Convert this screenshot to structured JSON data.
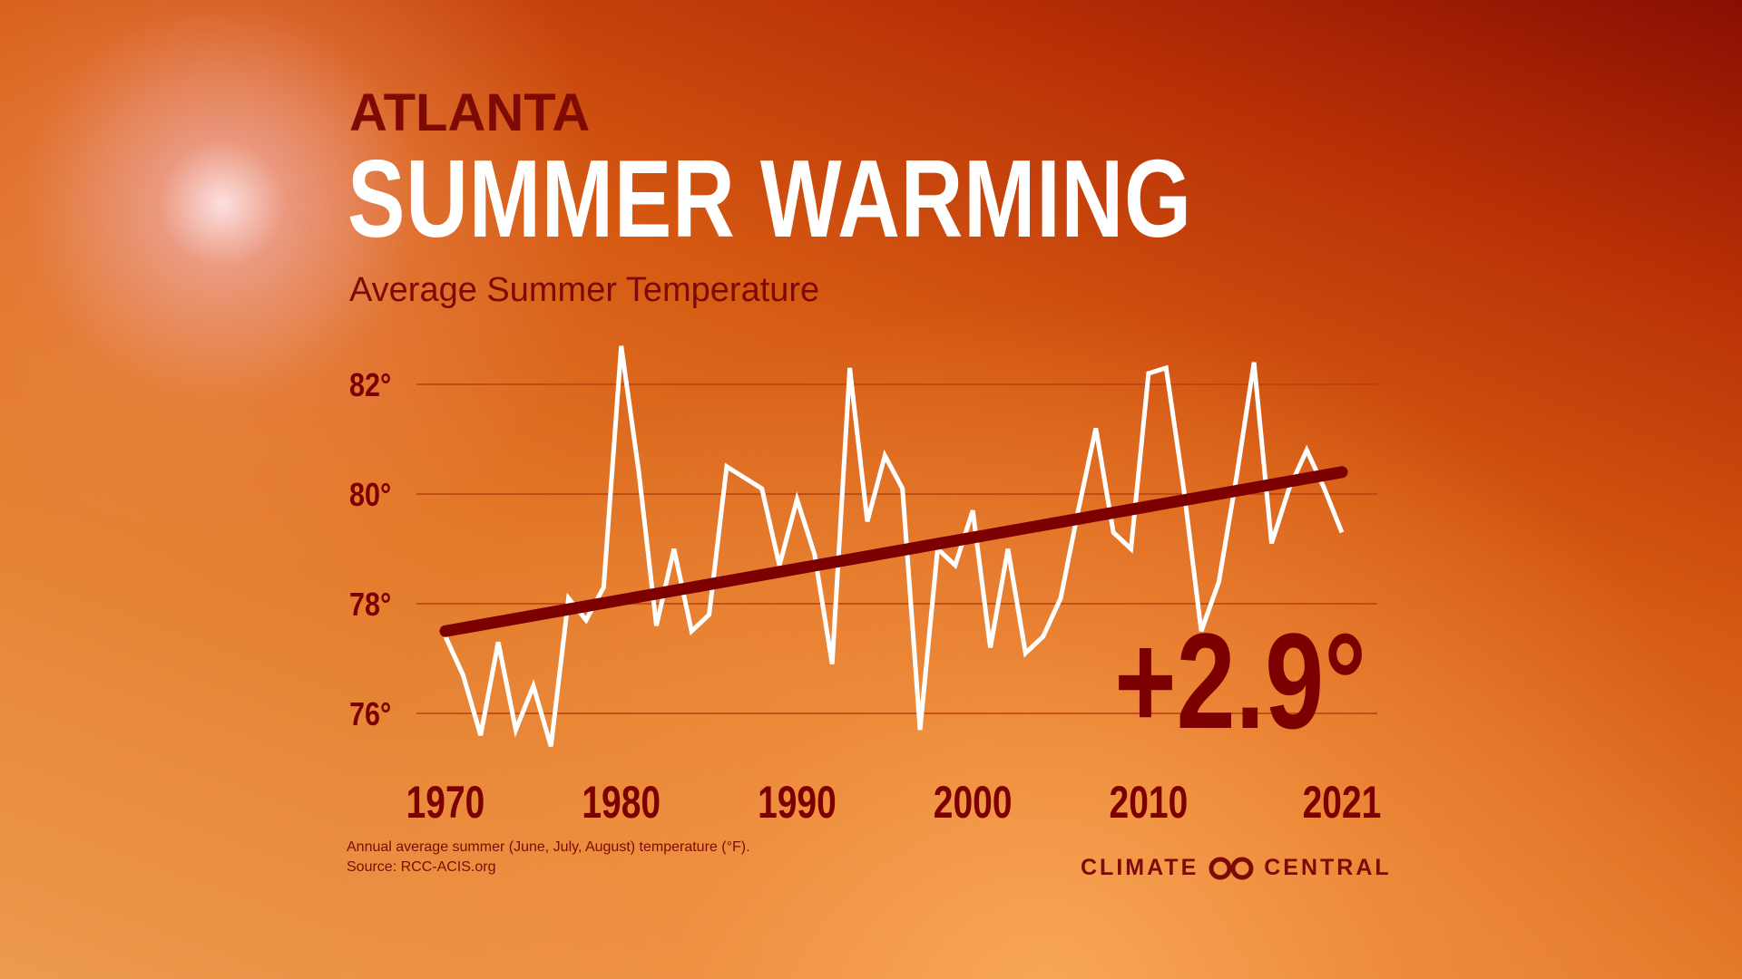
{
  "header": {
    "city": "ATLANTA",
    "title": "SUMMER WARMING",
    "subtitle": "Average Summer Temperature"
  },
  "footer": {
    "note": "Annual average summer (June, July, August) temperature (°F).",
    "source": "Source: RCC-ACIS.org"
  },
  "logo": {
    "left": "CLIMATE",
    "right": "CENTRAL",
    "icon": "infinity-rings-icon"
  },
  "colors": {
    "accent": "#7d0a04",
    "line": "#ffffff",
    "trend": "#7d0000"
  },
  "chart_data": {
    "type": "line",
    "title": "Average Summer Temperature",
    "xlim": [
      1970,
      2021
    ],
    "ylim": [
      75,
      83
    ],
    "yticks": [
      76,
      78,
      80,
      82
    ],
    "ytick_labels": [
      "76°",
      "78°",
      "80°",
      "82°"
    ],
    "xtick_labels": [
      "1970",
      "1980",
      "1990",
      "2000",
      "2010",
      "2021"
    ],
    "xticks": [
      1970,
      1980,
      1990,
      2000,
      2010,
      2021
    ],
    "grid": true,
    "x": [
      1970,
      1971,
      1972,
      1973,
      1974,
      1975,
      1976,
      1977,
      1978,
      1979,
      1980,
      1981,
      1982,
      1983,
      1984,
      1985,
      1986,
      1987,
      1988,
      1989,
      1990,
      1991,
      1992,
      1993,
      1994,
      1995,
      1996,
      1997,
      1998,
      1999,
      2000,
      2001,
      2002,
      2003,
      2004,
      2005,
      2006,
      2007,
      2008,
      2009,
      2010,
      2011,
      2012,
      2013,
      2014,
      2015,
      2016,
      2017,
      2018,
      2019,
      2020,
      2021
    ],
    "series": [
      {
        "values": [
          77.4,
          76.7,
          75.6,
          77.3,
          75.7,
          76.5,
          75.4,
          78.1,
          77.7,
          78.3,
          82.7,
          80.4,
          77.6,
          79.0,
          77.5,
          77.8,
          80.5,
          80.3,
          80.1,
          78.7,
          79.9,
          78.9,
          76.9,
          82.3,
          79.5,
          80.7,
          80.1,
          75.7,
          79.0,
          78.7,
          79.7,
          77.2,
          79.0,
          77.1,
          77.4,
          78.1,
          79.7,
          81.2,
          79.3,
          79.0,
          82.2,
          82.3,
          80.1,
          77.5,
          78.4,
          80.3,
          82.4,
          79.1,
          80.1,
          80.8,
          80.1,
          79.3
        ]
      }
    ],
    "trend": {
      "start": [
        1970,
        77.5
      ],
      "end": [
        2021,
        80.4
      ]
    },
    "annotation": "+2.9°"
  }
}
